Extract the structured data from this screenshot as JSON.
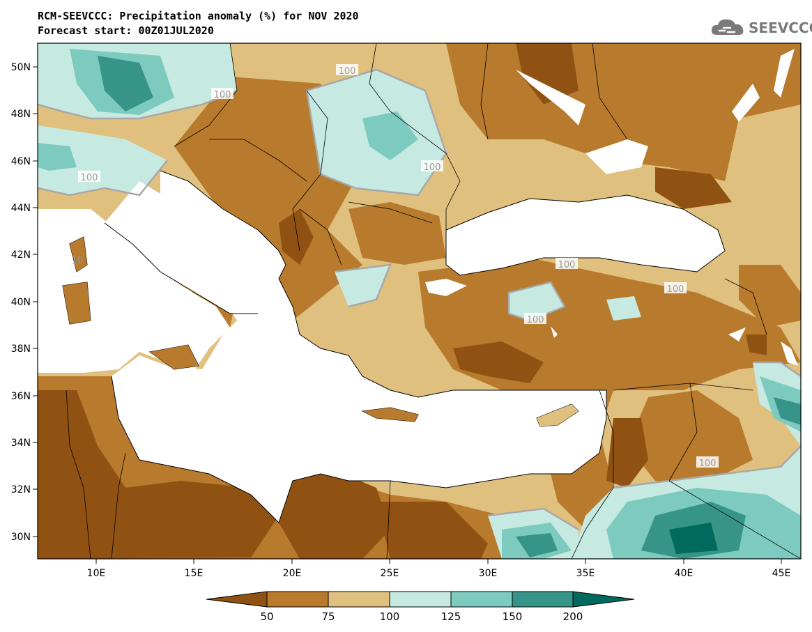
{
  "title_line1": "RCM-SEEVCCC: Precipitation anomaly (%) for NOV 2020",
  "title_line2": "Forecast start: 00Z01JUL2020",
  "logo_text": "SEEVCCC",
  "logo_icon": "cloud-icon",
  "lat_labels": [
    "50N",
    "48N",
    "46N",
    "44N",
    "42N",
    "40N",
    "38N",
    "36N",
    "34N",
    "32N",
    "30N"
  ],
  "lon_labels": [
    "10E",
    "15E",
    "20E",
    "25E",
    "30E",
    "35E",
    "40E",
    "45E"
  ],
  "contour_labels": [
    "100",
    "100",
    "100",
    "100",
    "100",
    "100",
    "100",
    "100",
    "10"
  ],
  "colorbar": {
    "ticks": [
      "50",
      "75",
      "100",
      "125",
      "150",
      "200"
    ],
    "colors": [
      "#8f5212",
      "#b87a2c",
      "#e0c07e",
      "#c6eae2",
      "#7dcbbf",
      "#379489",
      "#02695e"
    ]
  },
  "colors": {
    "sea": "#ffffff",
    "very_dry": "#8f5212",
    "dry": "#b87a2c",
    "slightly_dry": "#e0c07e",
    "slightly_wet": "#c6eae2",
    "wet": "#7dcbbf",
    "very_wet": "#379489",
    "extremely_wet": "#02695e",
    "contour_line": "#a8a8a8"
  }
}
